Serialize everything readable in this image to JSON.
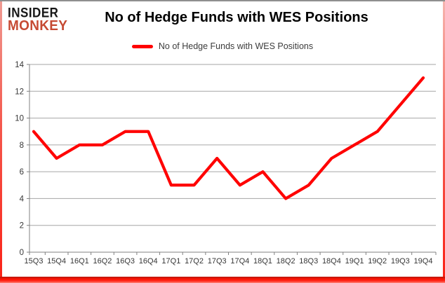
{
  "logo": {
    "line1": "INSIDER",
    "line2": "MONKEY",
    "line1_color": "#161616",
    "line2_color": "#c64a33"
  },
  "header": {
    "title": "No of Hedge Funds with WES Positions"
  },
  "legend": {
    "label": "No of Hedge Funds with WES Positions",
    "swatch_color": "#ff0000"
  },
  "chart_data": {
    "type": "line",
    "title": "No of Hedge Funds with WES Positions",
    "categories": [
      "15Q3",
      "15Q4",
      "16Q1",
      "16Q2",
      "16Q3",
      "16Q4",
      "17Q1",
      "17Q2",
      "17Q3",
      "17Q4",
      "18Q1",
      "18Q2",
      "18Q3",
      "18Q4",
      "19Q1",
      "19Q2",
      "19Q3",
      "19Q4"
    ],
    "series": [
      {
        "name": "No of Hedge Funds with WES Positions",
        "color": "#ff0000",
        "values": [
          9,
          7,
          8,
          8,
          9,
          9,
          5,
          5,
          7,
          5,
          6,
          4,
          5,
          7,
          8,
          9,
          11,
          13
        ]
      }
    ],
    "xlabel": "",
    "ylabel": "",
    "ylim": [
      0,
      14
    ],
    "ytick_step": 2,
    "grid": true,
    "legend_position": "top",
    "gridline_color": "#a6a6a6",
    "axis_color": "#808080",
    "tick_label_color": "#363636"
  }
}
